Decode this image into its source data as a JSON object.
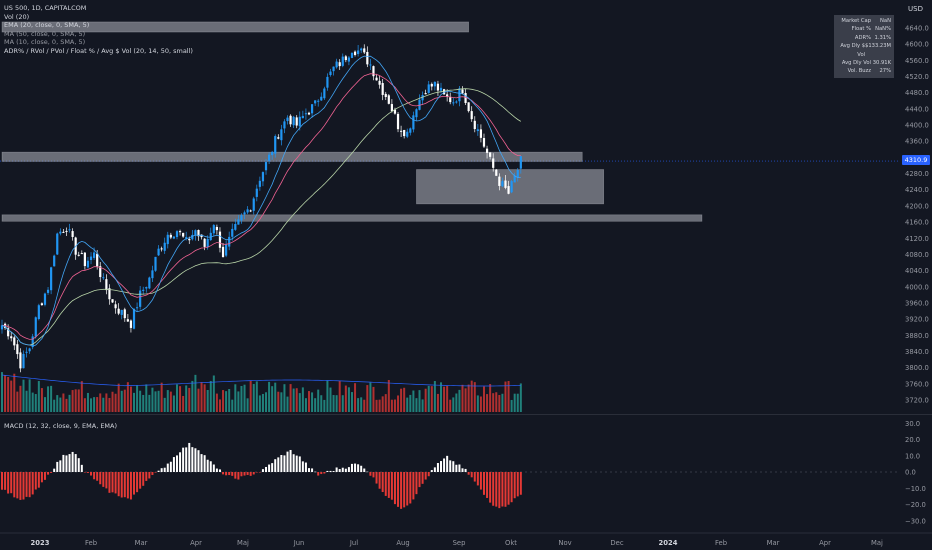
{
  "legend": {
    "symbol": "US 500, 1D, CAPITALCOM",
    "vol": "Vol (20)",
    "ema": "EMA (20, close, 0, SMA, 5)",
    "ma50": "MA (50, close, 0, SMA, 5)",
    "ma10": "MA (10, close, 0, SMA, 5)",
    "adr": "ADR% / RVol / PVol / Float % / Avg $ Vol (20, 14, 50, small)"
  },
  "macd_legend": "MACD (12, 32, close, 9, EMA, EMA)",
  "currency": "USD",
  "last_price": "4310.9",
  "stats": [
    {
      "label": "Market Cap",
      "value": "NaN"
    },
    {
      "label": "Float %",
      "value": "NaN%"
    },
    {
      "label": "ADR%",
      "value": "1.31%"
    },
    {
      "label": "Avg Dly $ Vol",
      "value": "$133.23M"
    },
    {
      "label": "Avg Dly Vol",
      "value": "30.91K"
    },
    {
      "label": "Vol. Buzz",
      "value": "27%"
    }
  ],
  "colors": {
    "background": "#131722",
    "up": "#2196f3",
    "down": "#ffffff",
    "ema": "#f06292",
    "ma50": "#b8d4a8",
    "ma10": "#42a5f5",
    "vol_up": "#26a69a",
    "vol_down": "#e53935",
    "macd_pos": "#ffffff",
    "macd_neg": "#e53935",
    "zone": "#b2b5be"
  },
  "chart_data": {
    "type": "candlestick",
    "price_axis": {
      "ticks": [
        3720,
        3760,
        3800,
        3840,
        3880,
        3920,
        3960,
        4000,
        4040,
        4080,
        4120,
        4160,
        4200,
        4240,
        4280,
        4320,
        4360,
        4400,
        4440,
        4480,
        4520,
        4560,
        4600,
        4640
      ],
      "range": [
        3700,
        4660
      ]
    },
    "macd_axis": {
      "ticks": [
        "30.0",
        "20.0",
        "10.0",
        "0.0",
        "−10.0",
        "−20.0",
        "−30.0"
      ],
      "values": [
        30,
        20,
        10,
        0,
        -10,
        -20,
        -30
      ]
    },
    "time_axis": [
      "2023",
      "Feb",
      "Mar",
      "Apr",
      "Maj",
      "Jun",
      "Jul",
      "Aug",
      "Sep",
      "Okt",
      "Nov",
      "Dec",
      "2024",
      "Feb",
      "Mar",
      "Apr",
      "Maj"
    ],
    "price_path": [
      [
        0,
        3905
      ],
      [
        3,
        3880
      ],
      [
        6,
        3810
      ],
      [
        9,
        3850
      ],
      [
        12,
        3950
      ],
      [
        15,
        4000
      ],
      [
        18,
        4130
      ],
      [
        21,
        4150
      ],
      [
        24,
        4090
      ],
      [
        27,
        4060
      ],
      [
        30,
        4080
      ],
      [
        33,
        4010
      ],
      [
        36,
        3960
      ],
      [
        39,
        3935
      ],
      [
        42,
        3910
      ],
      [
        45,
        3980
      ],
      [
        48,
        4020
      ],
      [
        51,
        4090
      ],
      [
        54,
        4130
      ],
      [
        57,
        4140
      ],
      [
        60,
        4110
      ],
      [
        63,
        4140
      ],
      [
        66,
        4100
      ],
      [
        69,
        4160
      ],
      [
        72,
        4080
      ],
      [
        75,
        4130
      ],
      [
        78,
        4170
      ],
      [
        81,
        4200
      ],
      [
        84,
        4270
      ],
      [
        87,
        4320
      ],
      [
        90,
        4380
      ],
      [
        93,
        4420
      ],
      [
        96,
        4400
      ],
      [
        99,
        4430
      ],
      [
        102,
        4450
      ],
      [
        105,
        4500
      ],
      [
        108,
        4540
      ],
      [
        111,
        4560
      ],
      [
        114,
        4590
      ],
      [
        117,
        4580
      ],
      [
        120,
        4550
      ],
      [
        123,
        4500
      ],
      [
        126,
        4460
      ],
      [
        129,
        4400
      ],
      [
        132,
        4380
      ],
      [
        135,
        4450
      ],
      [
        138,
        4490
      ],
      [
        141,
        4500
      ],
      [
        144,
        4470
      ],
      [
        147,
        4460
      ],
      [
        150,
        4490
      ],
      [
        153,
        4420
      ],
      [
        156,
        4370
      ],
      [
        159,
        4310
      ],
      [
        162,
        4260
      ],
      [
        165,
        4230
      ],
      [
        168,
        4290
      ],
      [
        169,
        4310
      ]
    ],
    "macd_path": [
      [
        0,
        -10
      ],
      [
        6,
        -18
      ],
      [
        10,
        -14
      ],
      [
        14,
        -5
      ],
      [
        17,
        3
      ],
      [
        20,
        10
      ],
      [
        23,
        13
      ],
      [
        25,
        8
      ],
      [
        27,
        0
      ],
      [
        30,
        -4
      ],
      [
        33,
        -10
      ],
      [
        36,
        -13
      ],
      [
        39,
        -15
      ],
      [
        42,
        -17
      ],
      [
        45,
        -10
      ],
      [
        48,
        -3
      ],
      [
        51,
        0
      ],
      [
        55,
        7
      ],
      [
        58,
        13
      ],
      [
        61,
        17
      ],
      [
        64,
        14
      ],
      [
        67,
        8
      ],
      [
        70,
        2
      ],
      [
        73,
        -2
      ],
      [
        76,
        -4
      ],
      [
        79,
        -3
      ],
      [
        82,
        -1
      ],
      [
        85,
        1
      ],
      [
        88,
        6
      ],
      [
        91,
        10
      ],
      [
        94,
        13
      ],
      [
        97,
        9
      ],
      [
        100,
        3
      ],
      [
        103,
        -2
      ],
      [
        106,
        0
      ],
      [
        109,
        2
      ],
      [
        112,
        3
      ],
      [
        115,
        5
      ],
      [
        118,
        3
      ],
      [
        121,
        -4
      ],
      [
        124,
        -12
      ],
      [
        127,
        -18
      ],
      [
        130,
        -22
      ],
      [
        133,
        -19
      ],
      [
        136,
        -10
      ],
      [
        139,
        -2
      ],
      [
        142,
        5
      ],
      [
        145,
        9
      ],
      [
        148,
        5
      ],
      [
        151,
        1
      ],
      [
        154,
        -6
      ],
      [
        157,
        -14
      ],
      [
        160,
        -20
      ],
      [
        163,
        -22
      ],
      [
        166,
        -18
      ],
      [
        169,
        -14
      ]
    ],
    "zones": [
      {
        "from_price": 4655,
        "to_price": 4630,
        "from_index": 0,
        "to_index": 152
      },
      {
        "from_price": 4333,
        "to_price": 4310,
        "from_index": 0,
        "to_index": 189
      },
      {
        "from_price": 4290,
        "to_price": 4205,
        "from_index": 135,
        "to_index": 196
      },
      {
        "from_price": 4178,
        "to_price": 4162,
        "from_index": 0,
        "to_index": 228
      }
    ]
  }
}
